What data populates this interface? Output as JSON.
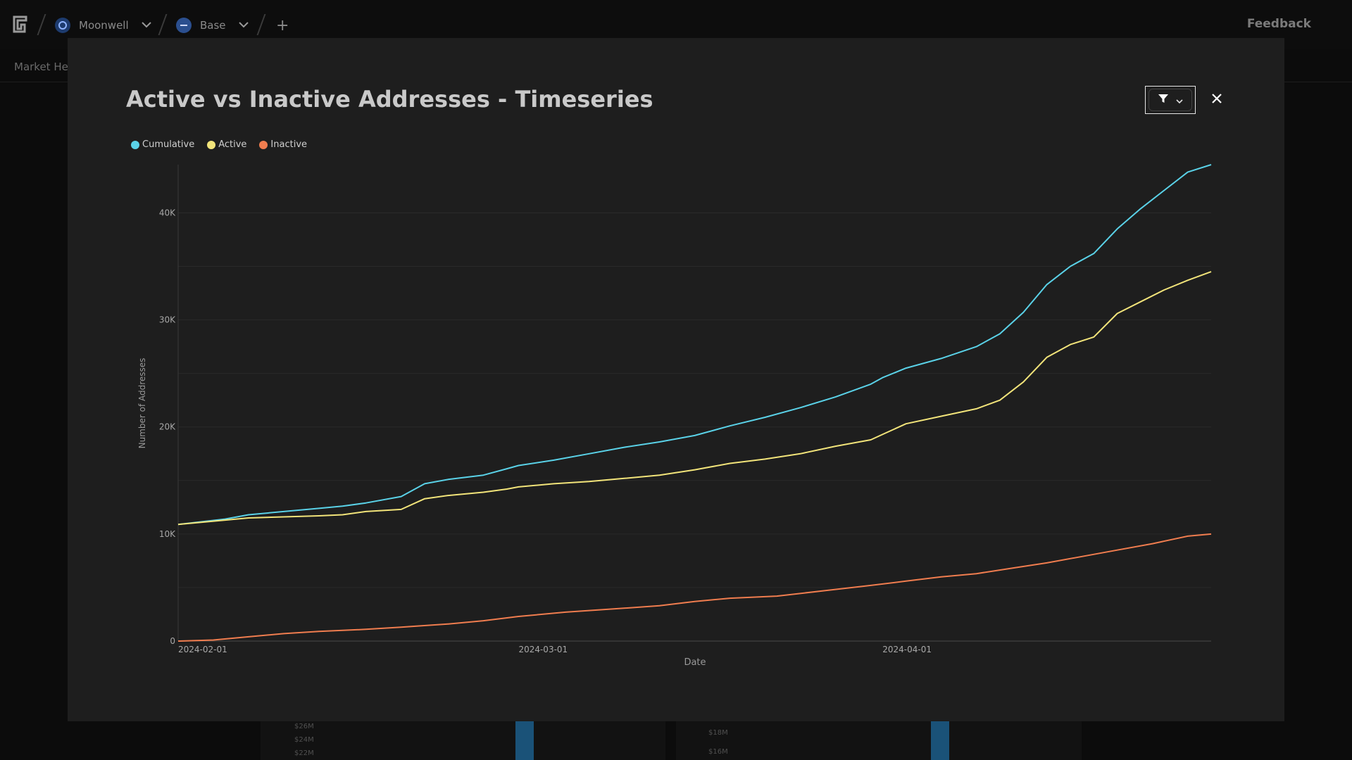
{
  "topbar": {
    "protocol": "Moonwell",
    "network": "Base",
    "add_label": "+",
    "feedback": "Feedback"
  },
  "subnav": {
    "label": "Market Hea"
  },
  "background_ticks": [
    "$26M",
    "$24M",
    "$22M",
    "$18M",
    "$16M"
  ],
  "modal": {
    "title": "Active vs Inactive Addresses - Timeseries",
    "filter_icon": "filter-icon",
    "close_icon": "close-icon"
  },
  "colors": {
    "cumulative": "#5ad2e8",
    "active": "#f2e47a",
    "inactive": "#f07d4f",
    "grid": "#2a2a2a",
    "axis": "#3a3a3a"
  },
  "chart_data": {
    "type": "line",
    "xlabel": "Date",
    "ylabel": "Number of Addresses",
    "ylim": [
      0,
      44500
    ],
    "y_ticks": [
      {
        "value": 0,
        "label": "0"
      },
      {
        "value": 10000,
        "label": "10K"
      },
      {
        "value": 20000,
        "label": "20K"
      },
      {
        "value": 30000,
        "label": "30K"
      },
      {
        "value": 40000,
        "label": "40K"
      }
    ],
    "x_ticks": [
      "2024-02-01",
      "2024-03-01",
      "2024-04-01"
    ],
    "x_start": "2024-02-01",
    "x_end": "2024-04-29",
    "grid": true,
    "legend_position": "top-left",
    "series": [
      {
        "name": "Cumulative",
        "points": [
          [
            "2024-02-01",
            10900
          ],
          [
            "2024-02-05",
            11400
          ],
          [
            "2024-02-07",
            11800
          ],
          [
            "2024-02-10",
            12100
          ],
          [
            "2024-02-13",
            12400
          ],
          [
            "2024-02-15",
            12600
          ],
          [
            "2024-02-17",
            12900
          ],
          [
            "2024-02-20",
            13500
          ],
          [
            "2024-02-22",
            14700
          ],
          [
            "2024-02-24",
            15100
          ],
          [
            "2024-02-27",
            15500
          ],
          [
            "2024-02-29",
            16100
          ],
          [
            "2024-03-01",
            16400
          ],
          [
            "2024-03-04",
            16900
          ],
          [
            "2024-03-07",
            17500
          ],
          [
            "2024-03-10",
            18100
          ],
          [
            "2024-03-13",
            18600
          ],
          [
            "2024-03-16",
            19200
          ],
          [
            "2024-03-19",
            20100
          ],
          [
            "2024-03-22",
            20900
          ],
          [
            "2024-03-25",
            21800
          ],
          [
            "2024-03-28",
            22800
          ],
          [
            "2024-03-31",
            24000
          ],
          [
            "2024-04-01",
            24600
          ],
          [
            "2024-04-03",
            25500
          ],
          [
            "2024-04-06",
            26400
          ],
          [
            "2024-04-09",
            27500
          ],
          [
            "2024-04-11",
            28700
          ],
          [
            "2024-04-13",
            30700
          ],
          [
            "2024-04-15",
            33300
          ],
          [
            "2024-04-17",
            35000
          ],
          [
            "2024-04-19",
            36200
          ],
          [
            "2024-04-21",
            38500
          ],
          [
            "2024-04-23",
            40400
          ],
          [
            "2024-04-25",
            42100
          ],
          [
            "2024-04-27",
            43800
          ],
          [
            "2024-04-29",
            44500
          ]
        ]
      },
      {
        "name": "Active",
        "points": [
          [
            "2024-02-01",
            10900
          ],
          [
            "2024-02-05",
            11300
          ],
          [
            "2024-02-07",
            11500
          ],
          [
            "2024-02-10",
            11600
          ],
          [
            "2024-02-13",
            11700
          ],
          [
            "2024-02-15",
            11800
          ],
          [
            "2024-02-17",
            12100
          ],
          [
            "2024-02-20",
            12300
          ],
          [
            "2024-02-22",
            13300
          ],
          [
            "2024-02-24",
            13600
          ],
          [
            "2024-02-27",
            13900
          ],
          [
            "2024-02-29",
            14200
          ],
          [
            "2024-03-01",
            14400
          ],
          [
            "2024-03-04",
            14700
          ],
          [
            "2024-03-07",
            14900
          ],
          [
            "2024-03-10",
            15200
          ],
          [
            "2024-03-13",
            15500
          ],
          [
            "2024-03-16",
            16000
          ],
          [
            "2024-03-19",
            16600
          ],
          [
            "2024-03-22",
            17000
          ],
          [
            "2024-03-25",
            17500
          ],
          [
            "2024-03-28",
            18200
          ],
          [
            "2024-03-31",
            18800
          ],
          [
            "2024-04-01",
            19300
          ],
          [
            "2024-04-03",
            20300
          ],
          [
            "2024-04-06",
            21000
          ],
          [
            "2024-04-09",
            21700
          ],
          [
            "2024-04-11",
            22500
          ],
          [
            "2024-04-13",
            24200
          ],
          [
            "2024-04-15",
            26500
          ],
          [
            "2024-04-17",
            27700
          ],
          [
            "2024-04-19",
            28400
          ],
          [
            "2024-04-21",
            30600
          ],
          [
            "2024-04-23",
            31700
          ],
          [
            "2024-04-25",
            32800
          ],
          [
            "2024-04-27",
            33700
          ],
          [
            "2024-04-29",
            34500
          ]
        ]
      },
      {
        "name": "Inactive",
        "points": [
          [
            "2024-02-01",
            0
          ],
          [
            "2024-02-04",
            100
          ],
          [
            "2024-02-07",
            400
          ],
          [
            "2024-02-10",
            700
          ],
          [
            "2024-02-13",
            900
          ],
          [
            "2024-02-17",
            1100
          ],
          [
            "2024-02-20",
            1300
          ],
          [
            "2024-02-24",
            1600
          ],
          [
            "2024-02-27",
            1900
          ],
          [
            "2024-03-01",
            2300
          ],
          [
            "2024-03-05",
            2700
          ],
          [
            "2024-03-09",
            3000
          ],
          [
            "2024-03-13",
            3300
          ],
          [
            "2024-03-16",
            3700
          ],
          [
            "2024-03-19",
            4000
          ],
          [
            "2024-03-23",
            4200
          ],
          [
            "2024-03-27",
            4700
          ],
          [
            "2024-03-31",
            5200
          ],
          [
            "2024-04-03",
            5600
          ],
          [
            "2024-04-06",
            6000
          ],
          [
            "2024-04-09",
            6300
          ],
          [
            "2024-04-12",
            6800
          ],
          [
            "2024-04-15",
            7300
          ],
          [
            "2024-04-18",
            7900
          ],
          [
            "2024-04-21",
            8500
          ],
          [
            "2024-04-24",
            9100
          ],
          [
            "2024-04-27",
            9800
          ],
          [
            "2024-04-29",
            10000
          ]
        ]
      }
    ]
  }
}
